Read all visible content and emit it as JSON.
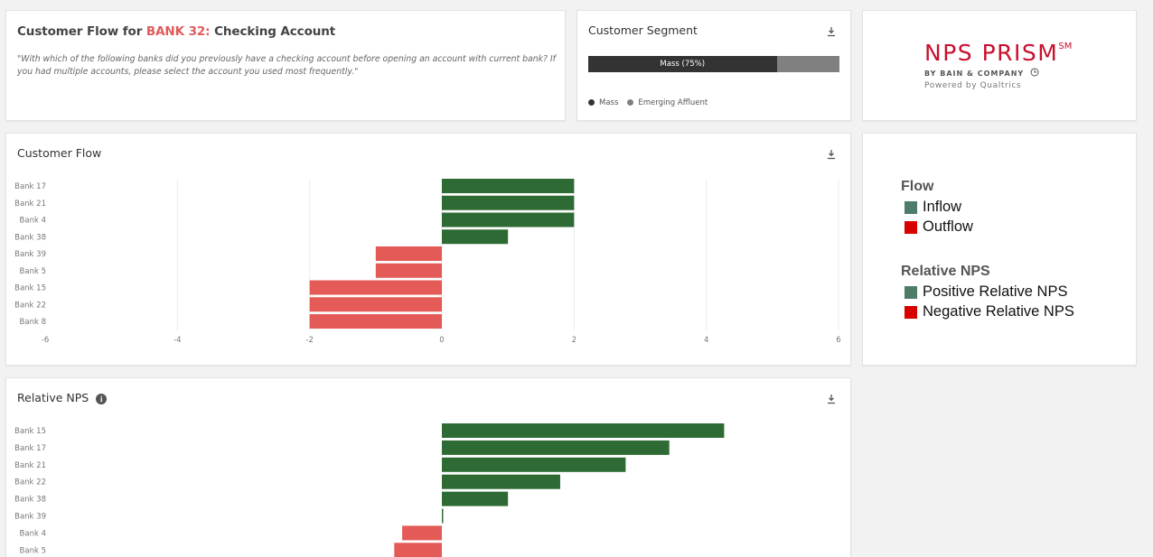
{
  "header": {
    "title_prefix": "Customer Flow for ",
    "bank": "BANK 32:",
    "title_suffix": " Checking Account",
    "question": "\"With which of the following banks did you previously have a checking account before opening an account with current bank? If you had multiple accounts, please select the account you used most frequently.\""
  },
  "segment": {
    "title": "Customer Segment",
    "bar_label": "Mass (75%)",
    "mass_share": 0.75,
    "legend": [
      {
        "label": "Mass",
        "color": "#333333"
      },
      {
        "label": "Emerging Affluent",
        "color": "#808080"
      }
    ]
  },
  "logo": {
    "main": "NPS PRISM",
    "sup": "SM",
    "sub": "BY BAIN & COMPANY",
    "powered": "Powered by Qualtrics"
  },
  "legend_panel": {
    "flow_heading": "Flow",
    "inflow": "Inflow",
    "outflow": "Outflow",
    "nps_heading": "Relative NPS",
    "positive": "Positive Relative NPS",
    "negative": "Negative Relative NPS",
    "colors": {
      "positive": "#4d7c68",
      "negative": "#d90000"
    }
  },
  "colors": {
    "inflow": "#2e6b34",
    "outflow": "#e35a57",
    "gridline": "#ececec",
    "axis_text": "#777777"
  },
  "chart_data": [
    {
      "type": "bar",
      "orientation": "horizontal",
      "title": "Customer Flow",
      "categories": [
        "Bank 17",
        "Bank 21",
        "Bank 4",
        "Bank 38",
        "Bank 39",
        "Bank 5",
        "Bank 15",
        "Bank 22",
        "Bank 8"
      ],
      "values": [
        2,
        2,
        2,
        1,
        -1,
        -1,
        -2,
        -2,
        -2
      ],
      "xlim": [
        -6,
        6
      ],
      "xticks": [
        -6,
        -4,
        -2,
        0,
        2,
        4,
        6
      ],
      "grid": true
    },
    {
      "type": "bar",
      "orientation": "horizontal",
      "title": "Relative NPS",
      "categories": [
        "Bank 15",
        "Bank 17",
        "Bank 21",
        "Bank 22",
        "Bank 38",
        "Bank 39",
        "Bank 4",
        "Bank 5"
      ],
      "values": [
        4.27,
        3.44,
        2.78,
        1.79,
        1.0,
        0.02,
        -0.6,
        -0.72
      ],
      "xlim": [
        -6,
        6
      ],
      "grid": false
    }
  ]
}
